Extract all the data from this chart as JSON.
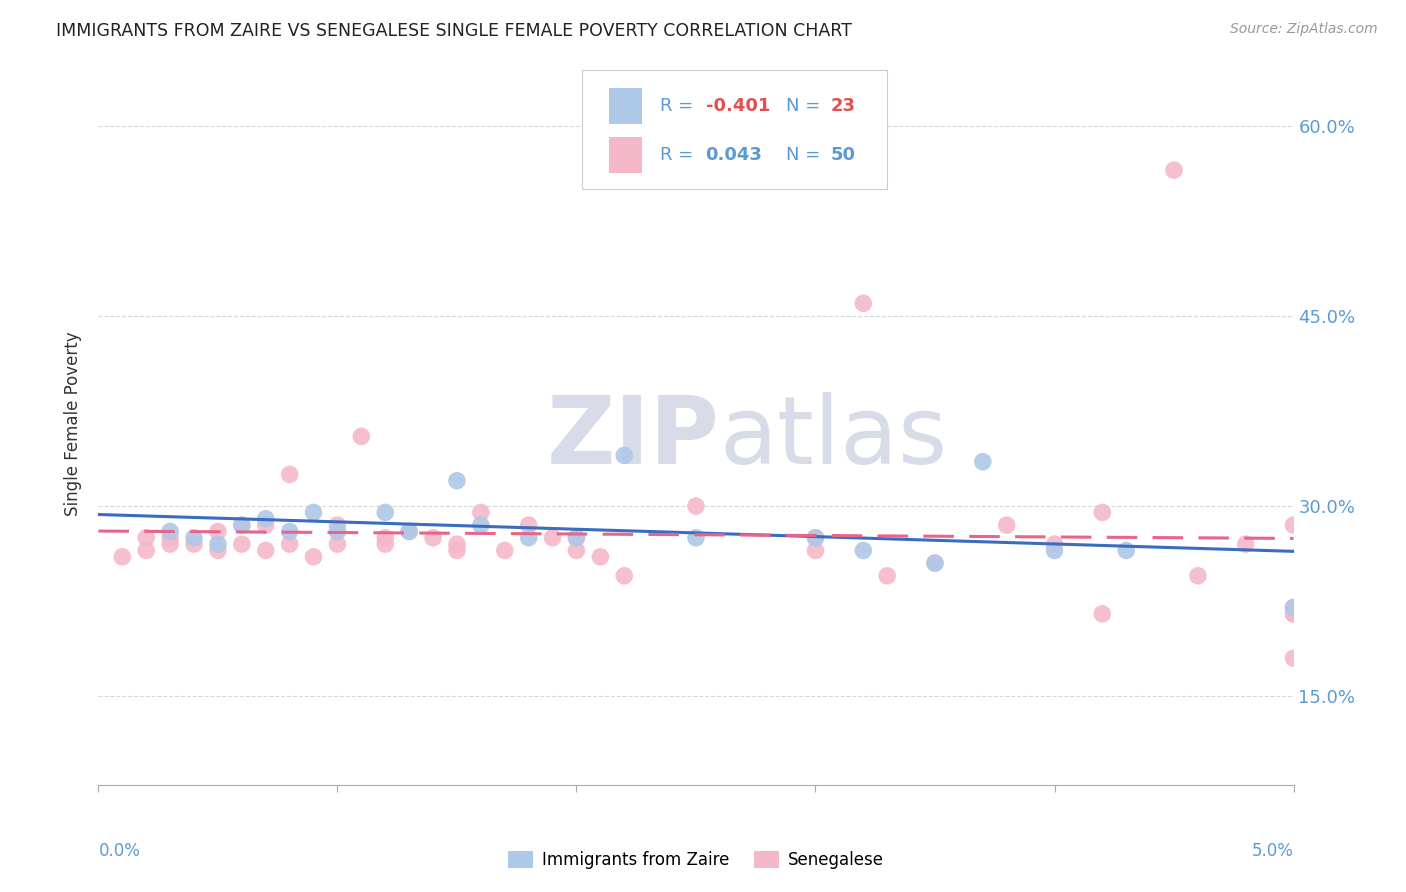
{
  "title": "IMMIGRANTS FROM ZAIRE VS SENEGALESE SINGLE FEMALE POVERTY CORRELATION CHART",
  "source": "Source: ZipAtlas.com",
  "ylabel": "Single Female Poverty",
  "y_ticks": [
    0.15,
    0.3,
    0.45,
    0.6
  ],
  "y_tick_labels": [
    "15.0%",
    "30.0%",
    "45.0%",
    "60.0%"
  ],
  "legend_label1": "Immigrants from Zaire",
  "legend_label2": "Senegalese",
  "r1": "-0.401",
  "n1": "23",
  "r2": "0.043",
  "n2": "50",
  "blue_color": "#aec8e8",
  "pink_color": "#f4b8c8",
  "blue_line_color": "#3a6dbf",
  "pink_line_color": "#e8648a",
  "zaire_x": [
    0.0003,
    0.0004,
    0.0005,
    0.0006,
    0.0007,
    0.0008,
    0.0009,
    0.001,
    0.0012,
    0.0013,
    0.0015,
    0.0016,
    0.0018,
    0.002,
    0.0022,
    0.0025,
    0.003,
    0.0032,
    0.0035,
    0.0037,
    0.004,
    0.0043,
    0.005
  ],
  "zaire_y": [
    0.28,
    0.275,
    0.27,
    0.285,
    0.29,
    0.28,
    0.295,
    0.28,
    0.295,
    0.28,
    0.32,
    0.285,
    0.275,
    0.275,
    0.34,
    0.275,
    0.275,
    0.265,
    0.255,
    0.335,
    0.265,
    0.265,
    0.22
  ],
  "senegal_x": [
    0.0001,
    0.0002,
    0.0002,
    0.0003,
    0.0003,
    0.0004,
    0.0005,
    0.0005,
    0.0006,
    0.0006,
    0.0007,
    0.0007,
    0.0008,
    0.0008,
    0.0009,
    0.001,
    0.001,
    0.0011,
    0.0012,
    0.0012,
    0.0013,
    0.0014,
    0.0015,
    0.0015,
    0.0016,
    0.0017,
    0.0018,
    0.0019,
    0.002,
    0.002,
    0.0021,
    0.0022,
    0.0025,
    0.003,
    0.003,
    0.0032,
    0.0033,
    0.0035,
    0.0038,
    0.004,
    0.0042,
    0.0045,
    0.0046,
    0.0048,
    0.0042,
    0.005,
    0.005,
    0.005,
    0.005,
    0.005
  ],
  "senegal_y": [
    0.26,
    0.275,
    0.265,
    0.275,
    0.27,
    0.27,
    0.28,
    0.265,
    0.27,
    0.285,
    0.265,
    0.285,
    0.325,
    0.27,
    0.26,
    0.285,
    0.27,
    0.355,
    0.27,
    0.275,
    0.28,
    0.275,
    0.27,
    0.265,
    0.295,
    0.265,
    0.285,
    0.275,
    0.275,
    0.265,
    0.26,
    0.245,
    0.3,
    0.265,
    0.275,
    0.46,
    0.245,
    0.255,
    0.285,
    0.27,
    0.295,
    0.565,
    0.245,
    0.27,
    0.215,
    0.215,
    0.215,
    0.22,
    0.285,
    0.18
  ],
  "xlim": [
    0.0,
    0.005
  ],
  "ylim": [
    0.08,
    0.65
  ],
  "background_color": "#ffffff",
  "grid_color": "#d8d8d8"
}
